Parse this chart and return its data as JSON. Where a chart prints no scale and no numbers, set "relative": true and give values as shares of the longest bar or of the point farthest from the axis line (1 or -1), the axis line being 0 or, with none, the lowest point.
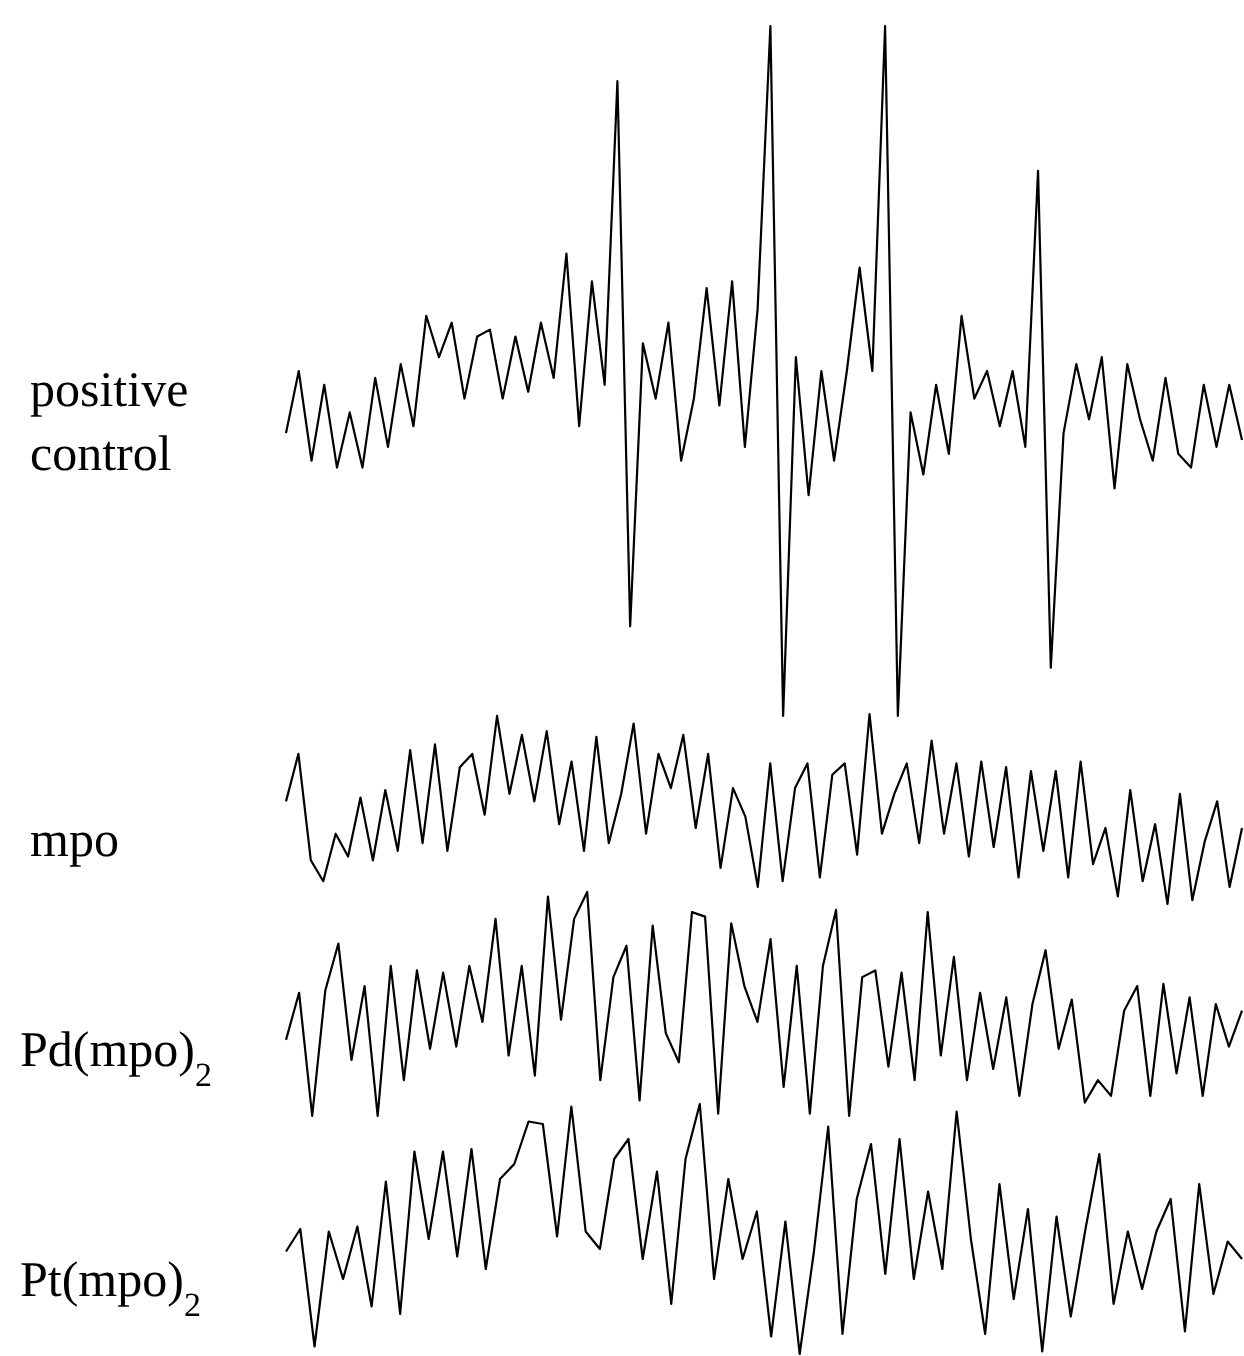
{
  "chart_data": [
    {
      "type": "line",
      "relative": true,
      "categories": [
        null,
        null,
        null,
        null,
        null,
        null,
        null,
        null,
        null,
        null,
        null,
        null,
        null,
        null,
        null,
        null,
        null,
        null,
        null,
        null,
        null,
        null,
        null,
        null,
        null,
        null,
        null,
        null,
        null,
        null,
        null,
        null,
        null,
        null,
        null,
        null,
        null,
        null,
        null,
        null,
        null,
        null,
        null,
        null,
        null,
        null,
        null,
        null,
        null,
        null,
        null,
        null,
        null,
        null,
        null,
        null,
        null,
        null,
        null,
        null,
        null,
        null,
        null,
        null,
        null,
        null,
        null,
        null,
        null,
        null,
        null,
        null,
        null,
        null,
        null,
        null
      ],
      "series": [
        {
          "name": "positive control",
          "color": "#000000",
          "values": [
            0.41,
            0.5,
            0.37,
            0.48,
            0.36,
            0.44,
            0.36,
            0.49,
            0.39,
            0.51,
            0.42,
            0.58,
            0.52,
            0.57,
            0.46,
            0.55,
            0.56,
            0.46,
            0.55,
            0.47,
            0.57,
            0.49,
            0.67,
            0.42,
            0.63,
            0.48,
            0.92,
            0.13,
            0.54,
            0.46,
            0.57,
            0.37,
            0.46,
            0.62,
            0.45,
            0.63,
            0.39,
            0.59,
            1,
            0,
            0.52,
            0.32,
            0.5,
            0.37,
            0.5,
            0.65,
            0.5,
            1,
            0,
            0.44,
            0.35,
            0.48,
            0.38,
            0.58,
            0.46,
            0.5,
            0.42,
            0.5,
            0.39,
            0.79,
            0.07,
            0.41,
            0.51,
            0.43,
            0.52,
            0.33,
            0.51,
            0.43,
            0.37,
            0.49,
            0.38,
            0.36,
            0.48,
            0.39,
            0.48,
            0.4
          ]
        }
      ]
    },
    {
      "type": "line",
      "relative": true,
      "categories": [
        null,
        null,
        null,
        null,
        null,
        null,
        null,
        null,
        null,
        null,
        null,
        null,
        null,
        null,
        null,
        null,
        null,
        null,
        null,
        null,
        null,
        null,
        null,
        null,
        null,
        null,
        null,
        null,
        null,
        null,
        null,
        null,
        null,
        null,
        null,
        null,
        null,
        null,
        null,
        null,
        null,
        null,
        null,
        null,
        null,
        null,
        null,
        null,
        null,
        null,
        null,
        null,
        null,
        null,
        null,
        null,
        null,
        null,
        null,
        null,
        null,
        null,
        null,
        null,
        null,
        null,
        null,
        null,
        null,
        null,
        null,
        null,
        null,
        null,
        null,
        null,
        null,
        null
      ],
      "series": [
        {
          "name": "mpo",
          "color": "#000000",
          "values": [
            0.54,
            0.79,
            0.23,
            0.12,
            0.37,
            0.25,
            0.56,
            0.23,
            0.6,
            0.28,
            0.81,
            0.32,
            0.84,
            0.28,
            0.72,
            0.79,
            0.47,
            0.99,
            0.58,
            0.89,
            0.54,
            0.91,
            0.42,
            0.75,
            0.28,
            0.88,
            0.32,
            0.58,
            0.95,
            0.37,
            0.79,
            0.61,
            0.89,
            0.4,
            0.79,
            0.19,
            0.61,
            0.46,
            0.09,
            0.74,
            0.12,
            0.61,
            0.74,
            0.14,
            0.68,
            0.74,
            0.26,
            1,
            0.37,
            0.58,
            0.74,
            0.32,
            0.86,
            0.37,
            0.74,
            0.25,
            0.75,
            0.3,
            0.72,
            0.14,
            0.7,
            0.28,
            0.7,
            0.14,
            0.75,
            0.21,
            0.4,
            0.04,
            0.6,
            0.12,
            0.42,
            0,
            0.58,
            0.02,
            0.33,
            0.54,
            0.09,
            0.4
          ]
        }
      ]
    },
    {
      "type": "line",
      "relative": true,
      "categories": [
        null,
        null,
        null,
        null,
        null,
        null,
        null,
        null,
        null,
        null,
        null,
        null,
        null,
        null,
        null,
        null,
        null,
        null,
        null,
        null,
        null,
        null,
        null,
        null,
        null,
        null,
        null,
        null,
        null,
        null,
        null,
        null,
        null,
        null,
        null,
        null,
        null,
        null,
        null,
        null,
        null,
        null,
        null,
        null,
        null,
        null,
        null,
        null,
        null,
        null,
        null,
        null,
        null,
        null,
        null,
        null,
        null,
        null,
        null,
        null,
        null,
        null,
        null,
        null,
        null,
        null,
        null,
        null,
        null,
        null,
        null,
        null,
        null,
        null
      ],
      "series": [
        {
          "name": "Pd(mpo)$_{2}$",
          "color": "#000000",
          "values": [
            0.34,
            0.55,
            0,
            0.56,
            0.77,
            0.25,
            0.58,
            0,
            0.67,
            0.16,
            0.65,
            0.3,
            0.64,
            0.31,
            0.67,
            0.42,
            0.88,
            0.27,
            0.67,
            0.18,
            0.98,
            0.43,
            0.88,
            1,
            0.16,
            0.62,
            0.76,
            0.07,
            0.85,
            0.37,
            0.24,
            0.91,
            0.89,
            0.01,
            0.86,
            0.58,
            0.42,
            0.79,
            0.13,
            0.67,
            0.01,
            0.67,
            0.92,
            0,
            0.62,
            0.65,
            0.22,
            0.64,
            0.16,
            0.91,
            0.27,
            0.71,
            0.16,
            0.55,
            0.21,
            0.53,
            0.09,
            0.5,
            0.74,
            0.3,
            0.52,
            0.06,
            0.16,
            0.09,
            0.47,
            0.58,
            0.09,
            0.59,
            0.19,
            0.53,
            0.09,
            0.5,
            0.31,
            0.47
          ]
        }
      ]
    },
    {
      "type": "line",
      "relative": true,
      "categories": [
        null,
        null,
        null,
        null,
        null,
        null,
        null,
        null,
        null,
        null,
        null,
        null,
        null,
        null,
        null,
        null,
        null,
        null,
        null,
        null,
        null,
        null,
        null,
        null,
        null,
        null,
        null,
        null,
        null,
        null,
        null,
        null,
        null,
        null,
        null,
        null,
        null,
        null,
        null,
        null,
        null,
        null,
        null,
        null,
        null,
        null,
        null,
        null,
        null,
        null,
        null,
        null,
        null,
        null,
        null,
        null,
        null,
        null,
        null,
        null,
        null,
        null,
        null,
        null,
        null,
        null,
        null,
        null
      ],
      "series": [
        {
          "name": "Pt(mpo)$_{2}$",
          "color": "#000000",
          "values": [
            0.41,
            0.5,
            0.03,
            0.49,
            0.3,
            0.51,
            0.19,
            0.69,
            0.16,
            0.81,
            0.46,
            0.81,
            0.39,
            0.82,
            0.34,
            0.7,
            0.76,
            0.93,
            0.92,
            0.47,
            0.99,
            0.49,
            0.42,
            0.78,
            0.86,
            0.38,
            0.73,
            0.2,
            0.78,
            1,
            0.3,
            0.7,
            0.38,
            0.57,
            0.07,
            0.53,
            0,
            0.41,
            0.91,
            0.08,
            0.62,
            0.84,
            0.32,
            0.86,
            0.3,
            0.65,
            0.34,
            0.97,
            0.46,
            0.08,
            0.68,
            0.22,
            0.58,
            0.01,
            0.55,
            0.15,
            0.49,
            0.8,
            0.2,
            0.49,
            0.26,
            0.49,
            0.62,
            0.09,
            0.68,
            0.24,
            0.45,
            0.38
          ]
        }
      ]
    }
  ]
}
